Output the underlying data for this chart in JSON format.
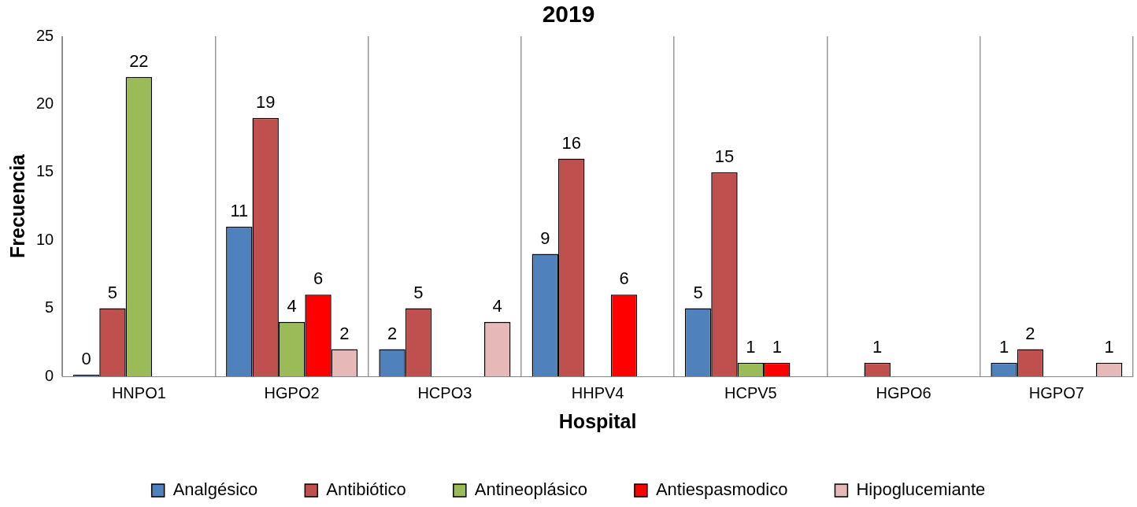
{
  "chart_data": {
    "type": "bar",
    "title": "2019",
    "xlabel": "Hospital",
    "ylabel": "Frecuencia",
    "categories": [
      "HNPO1",
      "HGPO2",
      "HCPO3",
      "HHPV4",
      "HCPV5",
      "HGPO6",
      "HGPO7"
    ],
    "series": [
      {
        "name": "Analgésico",
        "color": "#4f81bd",
        "values": [
          0,
          11,
          2,
          9,
          5,
          null,
          1
        ]
      },
      {
        "name": "Antibiótico",
        "color": "#c0504d",
        "values": [
          5,
          19,
          5,
          16,
          15,
          1,
          2
        ]
      },
      {
        "name": "Antineoplásico",
        "color": "#9bbb59",
        "values": [
          22,
          4,
          null,
          null,
          1,
          null,
          null
        ]
      },
      {
        "name": "Antiespasmodico",
        "color": "#ff0000",
        "values": [
          null,
          6,
          null,
          6,
          1,
          null,
          null
        ]
      },
      {
        "name": "Hipoglucemiante",
        "color": "#e6b9b8",
        "values": [
          null,
          2,
          4,
          null,
          null,
          null,
          1
        ]
      }
    ],
    "ylim": [
      0,
      25
    ],
    "yticks": [
      0,
      5,
      10,
      15,
      20,
      25
    ],
    "grid": "x",
    "legend": "bottom",
    "data_labels": true
  }
}
